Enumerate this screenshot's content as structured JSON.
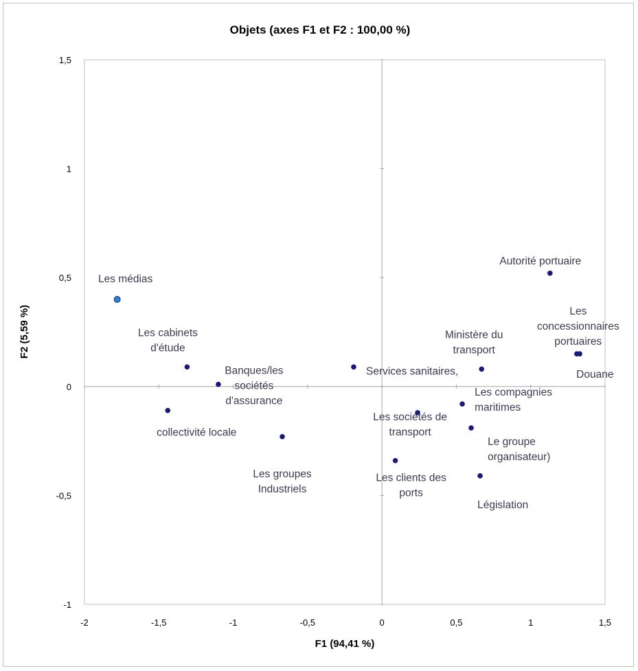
{
  "chart_data": {
    "type": "scatter",
    "title": "Objets (axes F1 et F2 : 100,00 %)",
    "xlabel": "F1 (94,41 %)",
    "ylabel": "F2 (5,59 %)",
    "xlim": [
      -2,
      1.5
    ],
    "ylim": [
      -1,
      1.5
    ],
    "xticks": [
      -2,
      -1.5,
      -1,
      -0.5,
      0,
      0.5,
      1,
      1.5
    ],
    "yticks": [
      -1,
      -0.5,
      0,
      0.5,
      1,
      1.5
    ],
    "xtick_labels": [
      "-2",
      "-1,5",
      "-1",
      "-0,5",
      "0",
      "0,5",
      "1",
      "1,5"
    ],
    "ytick_labels": [
      "-1",
      "-0,5",
      "0",
      "0,5",
      "1",
      "1,5"
    ],
    "grid": false,
    "legend": "none",
    "colors": {
      "point": "#1a1a7a",
      "highlight": "#2f7fd0",
      "label": "#3a3a52",
      "axis": "#a6a6a6"
    },
    "points": [
      {
        "label": [
          "Les médias"
        ],
        "x": -1.78,
        "y": 0.4,
        "highlight": true,
        "anchor": "middle",
        "dx": 12,
        "dy": -30
      },
      {
        "label": [
          "Les cabinets",
          "d'étude"
        ],
        "x": -1.31,
        "y": 0.09,
        "anchor": "middle",
        "dx": -28,
        "dy": -50
      },
      {
        "label": [
          "Banques/les",
          "sociétés",
          "d'assurance"
        ],
        "x": -1.1,
        "y": 0.01,
        "anchor": "middle",
        "dx": 52,
        "dy": -20
      },
      {
        "label": [
          "collectivité locale"
        ],
        "x": -1.44,
        "y": -0.11,
        "anchor": "middle",
        "dx": 42,
        "dy": 32
      },
      {
        "label": [
          "Les groupes",
          "Industriels"
        ],
        "x": -0.67,
        "y": -0.23,
        "anchor": "middle",
        "dx": 0,
        "dy": 54
      },
      {
        "label": [
          "Services sanitaires,"
        ],
        "x": -0.19,
        "y": 0.09,
        "anchor": "start",
        "dx": 18,
        "dy": 6
      },
      {
        "label": [
          "Les sociétés de",
          "transport"
        ],
        "x": 0.24,
        "y": -0.12,
        "anchor": "middle",
        "dx": -11,
        "dy": 6
      },
      {
        "label": [
          "Les clients des",
          "ports"
        ],
        "x": 0.09,
        "y": -0.34,
        "anchor": "middle",
        "dx": 23,
        "dy": 25
      },
      {
        "label": [
          "Ministère du",
          "transport"
        ],
        "x": 0.67,
        "y": 0.08,
        "anchor": "middle",
        "dx": -11,
        "dy": -50
      },
      {
        "label": [
          "Les compagnies",
          "maritimes"
        ],
        "x": 0.54,
        "y": -0.08,
        "anchor": "start",
        "dx": 18,
        "dy": -17
      },
      {
        "label": [
          "Le groupe",
          "organisateur)"
        ],
        "x": 0.6,
        "y": -0.19,
        "anchor": "start",
        "dx": 24,
        "dy": 20
      },
      {
        "label": [
          "Législation"
        ],
        "x": 0.66,
        "y": -0.41,
        "anchor": "start",
        "dx": -4,
        "dy": 42
      },
      {
        "label": [
          "Autorité portuaire"
        ],
        "x": 1.13,
        "y": 0.52,
        "anchor": "middle",
        "dx": -14,
        "dy": -18
      },
      {
        "label": [
          "Les",
          "concessionnaires",
          "portuaires"
        ],
        "x": 1.31,
        "y": 0.15,
        "anchor": "middle",
        "dx": 2,
        "dy": -62
      },
      {
        "label": [
          "Douane"
        ],
        "x": 1.33,
        "y": 0.15,
        "anchor": "start",
        "dx": -5,
        "dy": 30
      }
    ]
  }
}
